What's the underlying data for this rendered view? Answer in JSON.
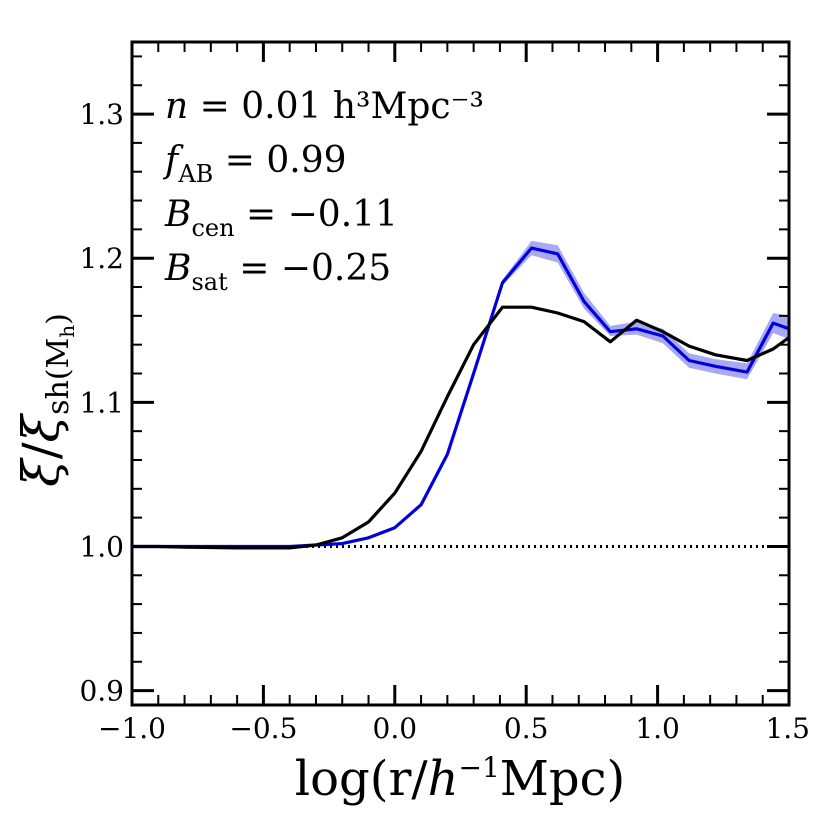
{
  "chart_data": {
    "type": "line",
    "xlabel": "log(r/h⁻¹Mpc)",
    "ylabel": "ξ/ξ_sh(M_h)",
    "xlim": [
      -1.0,
      1.5
    ],
    "ylim": [
      0.89,
      1.35
    ],
    "xticks": [
      -1.0,
      -0.5,
      0.0,
      0.5,
      1.0,
      1.5
    ],
    "xtick_labels": [
      "−1.0",
      "−0.5",
      "0.0",
      "0.5",
      "1.0",
      "1.5"
    ],
    "yticks": [
      0.9,
      1.0,
      1.1,
      1.2,
      1.3
    ],
    "ytick_labels": [
      "0.9",
      "1.0",
      "1.1",
      "1.2",
      "1.3"
    ],
    "reference_line": {
      "y": 1.0,
      "style": "dotted",
      "color": "#000000"
    },
    "annotations": [
      {
        "main": "n",
        "sub": "",
        "rest": " = 0.01 h³Mpc⁻³"
      },
      {
        "main": "f",
        "sub": "AB",
        "rest": " = 0.99"
      },
      {
        "main": "B",
        "sub": "cen",
        "rest": " = −0.11"
      },
      {
        "main": "B",
        "sub": "sat",
        "rest": " = −0.25"
      }
    ],
    "series": [
      {
        "name": "blue",
        "color": "#0000dd",
        "band_color": "#a9a9f2",
        "x": [
          -1.0,
          -0.9,
          -0.8,
          -0.7,
          -0.6,
          -0.5,
          -0.4,
          -0.3,
          -0.2,
          -0.1,
          0.0,
          0.1,
          0.2,
          0.3,
          0.41,
          0.52,
          0.62,
          0.72,
          0.82,
          0.92,
          1.02,
          1.12,
          1.22,
          1.34,
          1.44,
          1.5
        ],
        "values": [
          1.0,
          1.0,
          1.0,
          1.0,
          1.0,
          1.0,
          1.0,
          1.001,
          1.002,
          1.006,
          1.013,
          1.029,
          1.064,
          1.12,
          1.183,
          1.207,
          1.203,
          1.17,
          1.149,
          1.151,
          1.146,
          1.129,
          1.125,
          1.121,
          1.155,
          1.151
        ],
        "lower": [
          1.0,
          1.0,
          1.0,
          1.0,
          1.0,
          1.0,
          1.0,
          1.001,
          1.002,
          1.006,
          1.013,
          1.029,
          1.064,
          1.12,
          1.181,
          1.202,
          1.197,
          1.165,
          1.146,
          1.147,
          1.141,
          1.124,
          1.12,
          1.116,
          1.148,
          1.144
        ],
        "upper": [
          1.0,
          1.0,
          1.0,
          1.0,
          1.0,
          1.0,
          1.0,
          1.001,
          1.002,
          1.006,
          1.013,
          1.029,
          1.064,
          1.12,
          1.185,
          1.212,
          1.209,
          1.176,
          1.153,
          1.156,
          1.151,
          1.134,
          1.13,
          1.127,
          1.162,
          1.16
        ]
      },
      {
        "name": "black",
        "color": "#000000",
        "x": [
          -1.0,
          -0.9,
          -0.8,
          -0.7,
          -0.6,
          -0.5,
          -0.4,
          -0.3,
          -0.2,
          -0.1,
          0.0,
          0.1,
          0.2,
          0.3,
          0.41,
          0.52,
          0.62,
          0.72,
          0.82,
          0.92,
          1.02,
          1.12,
          1.22,
          1.34,
          1.44,
          1.5
        ],
        "values": [
          1.0,
          1.0,
          0.9995,
          0.9993,
          0.999,
          0.999,
          0.999,
          1.001,
          1.006,
          1.017,
          1.037,
          1.066,
          1.104,
          1.14,
          1.166,
          1.166,
          1.162,
          1.156,
          1.142,
          1.157,
          1.149,
          1.139,
          1.133,
          1.129,
          1.137,
          1.145
        ]
      }
    ]
  }
}
